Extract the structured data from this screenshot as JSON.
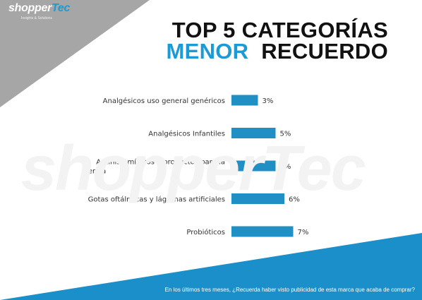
{
  "logo": {
    "part1": "shopper",
    "part2": "Tec",
    "tagline": "Insights & Solutions"
  },
  "title": {
    "line1": "TOP 5 CATEGORÍAS",
    "line2_accent": "MENOR",
    "line2_rest": "RECUERDO"
  },
  "watermark": "shopperTec",
  "footer": "En los últimos tres meses, ¿Recuerda haber visto publicidad de esta marca que acaba de comprar?",
  "colors": {
    "accent": "#1a9ad6",
    "bar": "#1f8fc4",
    "band": "#1b8fc9",
    "corner": "#a6a6a6"
  },
  "chart_data": {
    "type": "bar",
    "orientation": "horizontal",
    "categories": [
      [
        "Analgésicos uso general genéricos"
      ],
      [
        "Analgésicos Infantiles"
      ],
      [
        "Antihistamínicos y productos para la",
        "alergia"
      ],
      [
        "Gotas oftálmicas y lágrimas artificiales"
      ],
      [
        "Probióticos"
      ]
    ],
    "values": [
      3,
      5,
      5,
      6,
      7
    ],
    "value_labels": [
      "3%",
      "5%",
      "5%",
      "6%",
      "7%"
    ],
    "grid": false,
    "legend": "none"
  }
}
